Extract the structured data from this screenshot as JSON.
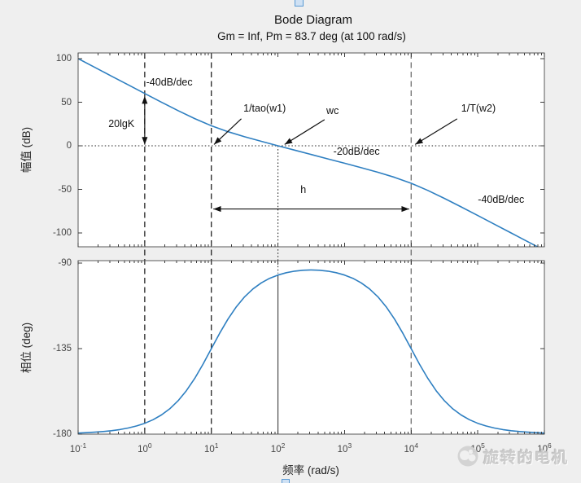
{
  "figure": {
    "title": "Bode Diagram",
    "subtitle": "Gm = Inf,  Pm = 83.7 deg (at 100 rad/s)",
    "xlabel": "频率  (rad/s)",
    "watermark_text": "旋转的电机",
    "colors": {
      "curve": "#2e7fc1",
      "figure_bg": "#efefef",
      "plot_bg": "#ffffff",
      "axis_border": "#5a5a5a",
      "tick": "#3c3c3c",
      "tick_label": "#464646",
      "dashed_dark": "#222222",
      "dashed_gray": "#6f6f6f",
      "annotation": "#111111"
    }
  },
  "x_axis": {
    "base": "10",
    "tick_exponents": [
      "-1",
      "0",
      "1",
      "2",
      "3",
      "4",
      "5",
      "6"
    ],
    "label": "频率  (rad/s)"
  },
  "chart_data": [
    {
      "type": "line",
      "name": "magnitude",
      "title": "Bode Diagram",
      "subtitle": "Gm = Inf,  Pm = 83.7 deg (at 100 rad/s)",
      "ylabel": "幅值 (dB)",
      "xlabel_log10_range": [
        -1,
        6
      ],
      "ylim": [
        -115,
        106.5
      ],
      "yticks": [
        100,
        50,
        0,
        -50,
        -100
      ],
      "grid": false,
      "hline_db": 0,
      "series": [
        {
          "name": "open-loop magnitude",
          "x_start": -1,
          "x_step": 0.25,
          "y_db": [
            100,
            90,
            80,
            70,
            60.04,
            50.14,
            40.41,
            31.19,
            23.01,
            16.19,
            10.41,
            5.14,
            0.04,
            -4.99,
            -10.0,
            -15.01,
            -20.04,
            -25.14,
            -30.41,
            -36.19,
            -43.01,
            -51.19,
            -60.41,
            -70.14,
            -80.04,
            -90.01,
            -100.0,
            -110.0,
            -120.0
          ]
        }
      ],
      "vlines": [
        {
          "x_log10": 0,
          "style": "dashed",
          "color": "dark"
        },
        {
          "x_log10": 1,
          "style": "dashed",
          "color": "dark"
        },
        {
          "x_log10": 2,
          "style": "dotted",
          "color": "dark",
          "from_db": 0
        },
        {
          "x_log10": 4,
          "style": "dashed",
          "color": "gray"
        }
      ],
      "annotations": [
        {
          "kind": "text",
          "text": "-40dB/dec",
          "x": 0.37,
          "y": 72.5
        },
        {
          "kind": "text",
          "text": "20lgK",
          "x": -0.35,
          "y": 25
        },
        {
          "kind": "text",
          "text": "1/tao(w1)",
          "x": 1.8,
          "y": 43
        },
        {
          "kind": "text",
          "text": "wc",
          "x": 2.82,
          "y": 40
        },
        {
          "kind": "text",
          "text": "-20dB/dec",
          "x": 3.18,
          "y": -6.5
        },
        {
          "kind": "text",
          "text": "1/T(w2)",
          "x": 5.01,
          "y": 43
        },
        {
          "kind": "text",
          "text": "h",
          "x": 2.38,
          "y": -50
        },
        {
          "kind": "text",
          "text": "-40dB/dec",
          "x": 5.35,
          "y": -61.5
        },
        {
          "kind": "arrow",
          "x1": 1.45,
          "y1": 31,
          "x2": 1.04,
          "y2": 1.5
        },
        {
          "kind": "arrow",
          "x1": 2.7,
          "y1": 30,
          "x2": 2.1,
          "y2": 1.5
        },
        {
          "kind": "arrow",
          "x1": 4.69,
          "y1": 31,
          "x2": 4.06,
          "y2": 1.5
        },
        {
          "kind": "double-arrow",
          "x1": 0,
          "y1": 57,
          "x2": 0,
          "y2": 1.3
        },
        {
          "kind": "double-arrow",
          "x1": 1.03,
          "y1": -72.5,
          "x2": 3.97,
          "y2": -72.5
        }
      ]
    },
    {
      "type": "line",
      "name": "phase",
      "ylabel": "相位 (deg)",
      "xlabel_log10_range": [
        -1,
        6
      ],
      "ylim": [
        -180,
        -88.7
      ],
      "yticks": [
        -90,
        -135,
        -180
      ],
      "grid": false,
      "series": [
        {
          "name": "open-loop phase",
          "x_start": -1,
          "x_step": 0.125,
          "y_deg": [
            -179.43,
            -179.24,
            -178.98,
            -178.64,
            -178.19,
            -177.59,
            -176.78,
            -175.72,
            -174.3,
            -172.41,
            -169.93,
            -166.67,
            -162.47,
            -157.16,
            -150.69,
            -143.17,
            -135.06,
            -126.95,
            -119.45,
            -113.0,
            -107.73,
            -103.59,
            -100.41,
            -98.03,
            -96.28,
            -95.05,
            -94.24,
            -93.77,
            -93.62,
            -93.77,
            -94.24,
            -95.05,
            -96.28,
            -98.03,
            -100.41,
            -103.59,
            -107.73,
            -113.0,
            -119.45,
            -126.95,
            -135.06,
            -143.17,
            -150.69,
            -157.16,
            -162.47,
            -166.67,
            -169.93,
            -172.41,
            -174.3,
            -175.72,
            -176.78,
            -177.59,
            -178.19,
            -178.64,
            -178.98,
            -179.24,
            -179.43
          ]
        }
      ],
      "vlines": [
        {
          "x_log10": 0,
          "style": "dashed",
          "color": "dark"
        },
        {
          "x_log10": 1,
          "style": "dashed",
          "color": "dark"
        },
        {
          "x_log10": 2,
          "style": "split",
          "color": "dark"
        },
        {
          "x_log10": 4,
          "style": "dashed",
          "color": "gray"
        }
      ],
      "annotations": []
    }
  ]
}
